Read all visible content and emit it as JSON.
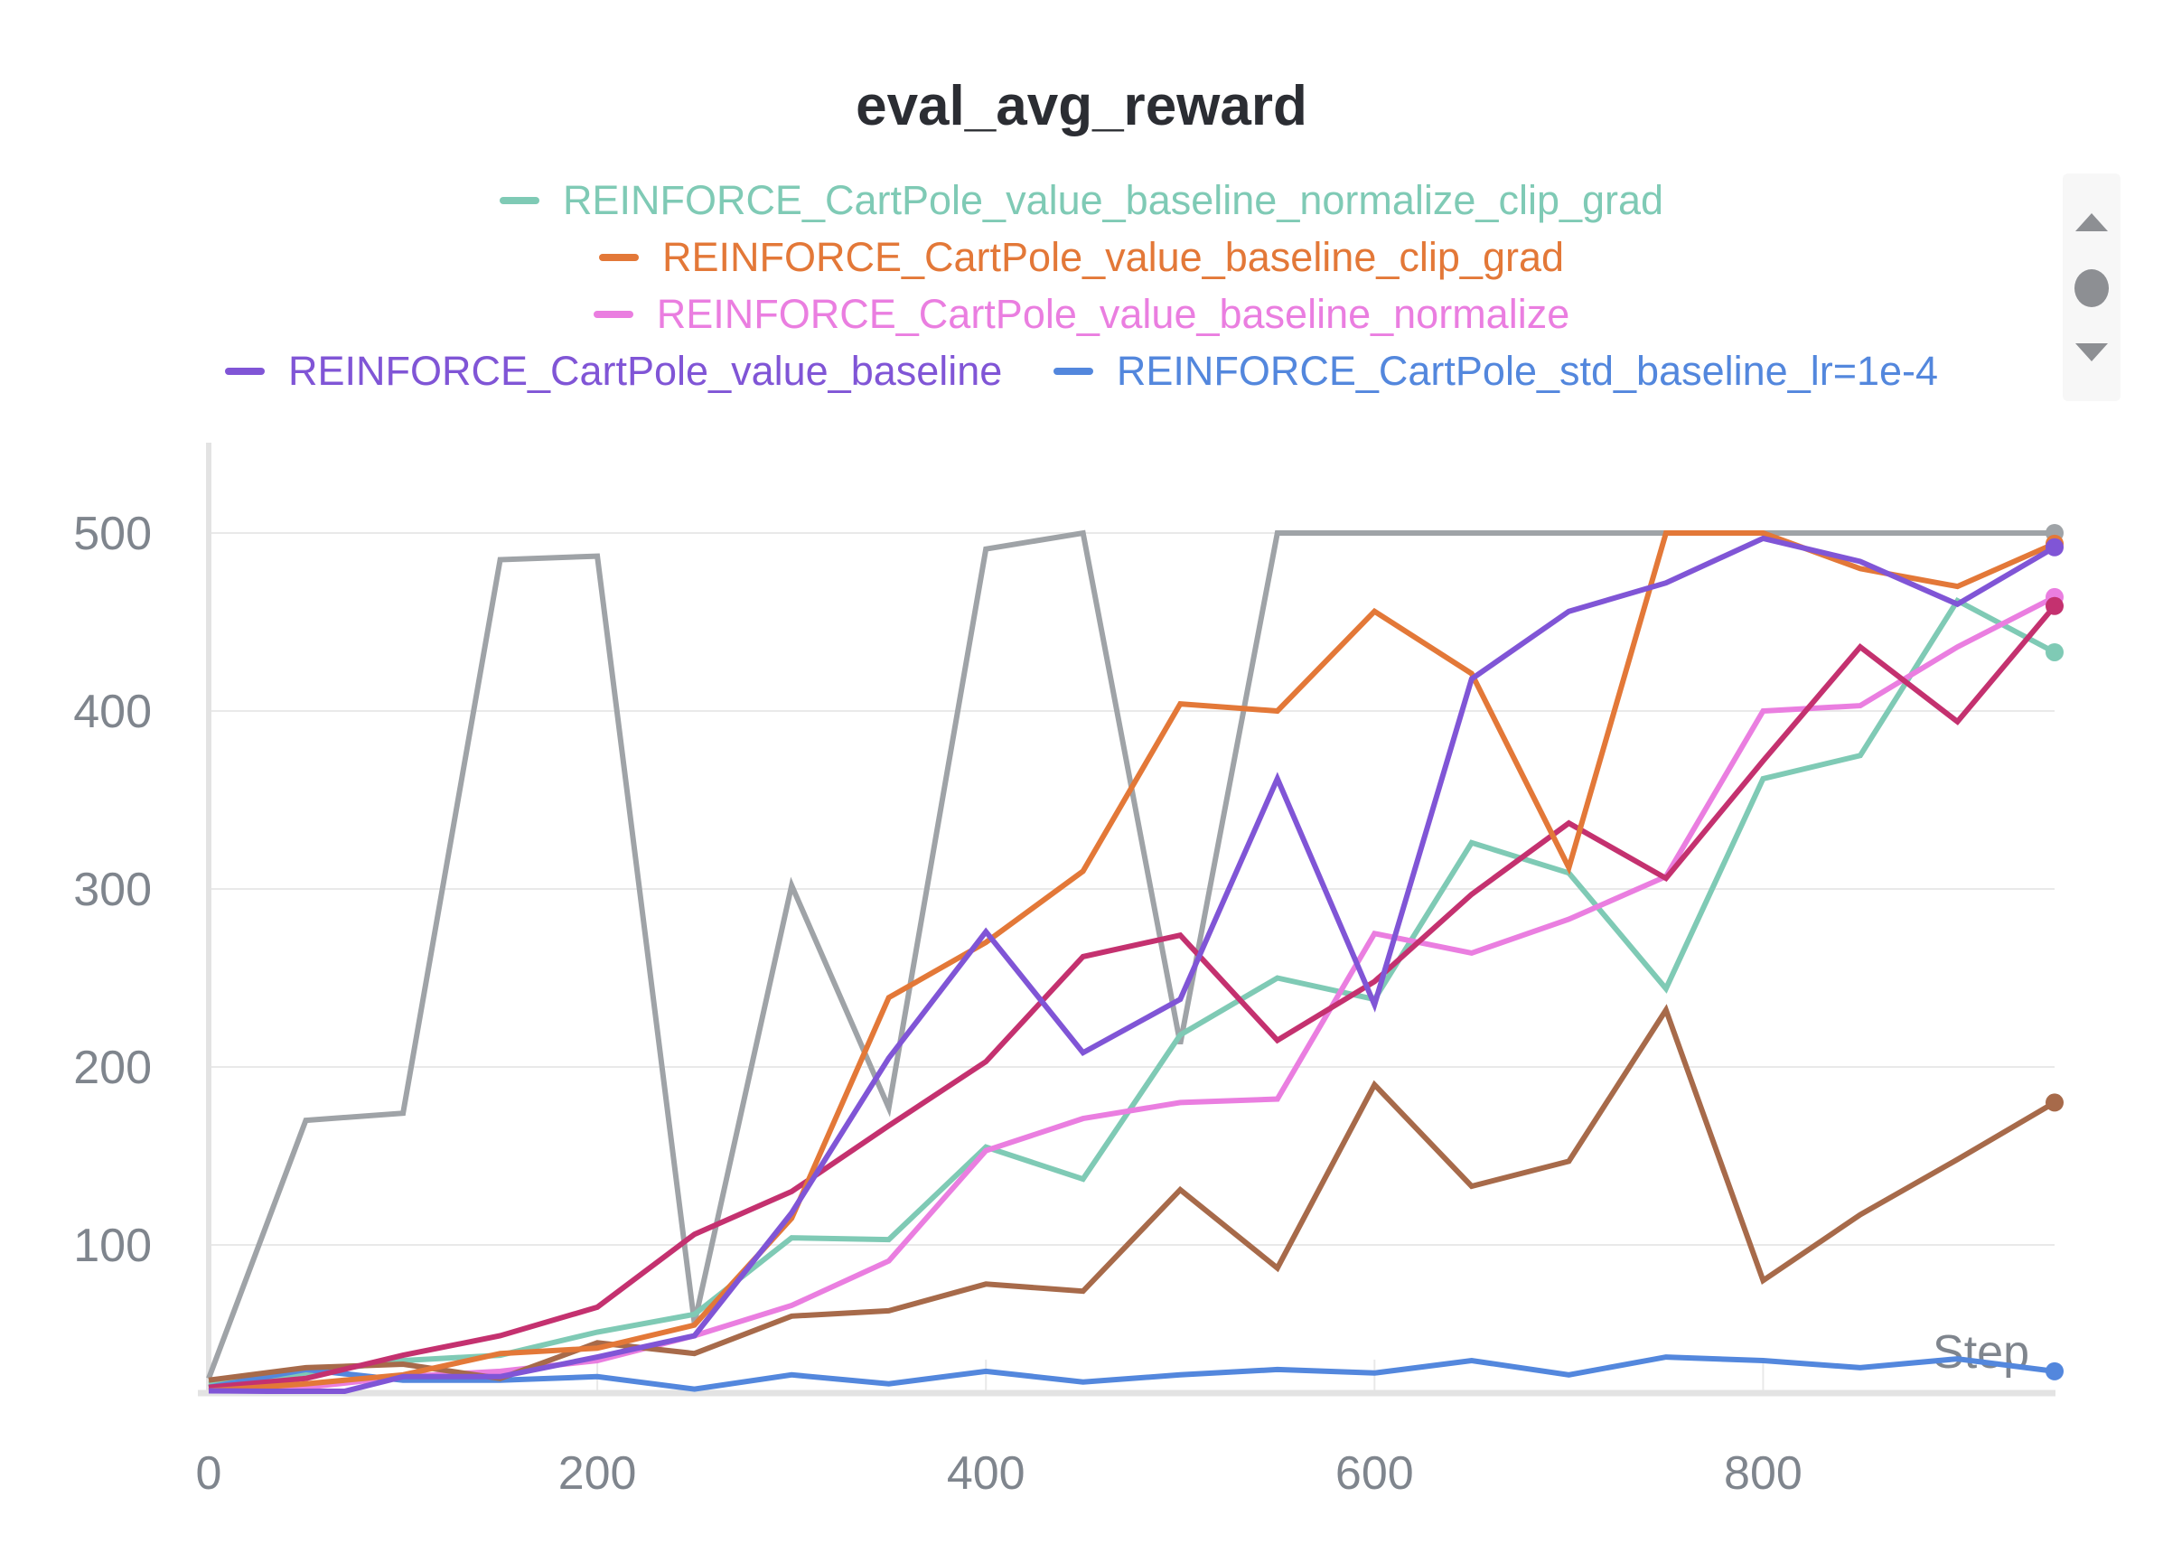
{
  "chart_data": {
    "type": "line",
    "title": "eval_avg_reward",
    "xlabel": "Step",
    "ylabel": "",
    "xlim": [
      0,
      950
    ],
    "ylim": [
      13,
      550
    ],
    "x_ticks": [
      0,
      200,
      400,
      600,
      800
    ],
    "y_ticks": [
      100,
      200,
      300,
      400,
      500
    ],
    "grid": true,
    "legend_position": "top",
    "series": [
      {
        "name": "REINFORCE_CartPole_value_baseline_normalize_clip_grad",
        "color": "#7fcab5",
        "legend": true,
        "x": [
          0,
          50,
          100,
          150,
          200,
          250,
          300,
          350,
          400,
          450,
          500,
          550,
          600,
          650,
          700,
          750,
          800,
          850,
          900,
          950
        ],
        "values": [
          22,
          28,
          35,
          38,
          51,
          61,
          104,
          103,
          155,
          137,
          218,
          250,
          238,
          326,
          309,
          244,
          362,
          375,
          462,
          433
        ]
      },
      {
        "name": "REINFORCE_CartPole_value_baseline_clip_grad",
        "color": "#e37838",
        "legend": true,
        "x": [
          0,
          50,
          100,
          150,
          200,
          250,
          300,
          350,
          400,
          450,
          500,
          550,
          600,
          650,
          700,
          750,
          800,
          850,
          900,
          950
        ],
        "values": [
          18,
          22,
          27,
          39,
          42,
          55,
          115,
          239,
          270,
          310,
          404,
          400,
          456,
          421,
          312,
          500,
          500,
          480,
          470,
          494
        ]
      },
      {
        "name": "REINFORCE_CartPole_value_baseline_normalize",
        "color": "#ea7ee0",
        "legend": true,
        "x": [
          0,
          50,
          100,
          150,
          200,
          250,
          300,
          350,
          400,
          450,
          500,
          550,
          600,
          650,
          700,
          750,
          800,
          850,
          900,
          950
        ],
        "values": [
          18,
          20,
          26,
          29,
          35,
          49,
          66,
          91,
          153,
          171,
          180,
          182,
          275,
          264,
          283,
          307,
          400,
          403,
          436,
          464
        ]
      },
      {
        "name": "REINFORCE_CartPole_value_baseline",
        "color": "#8055d6",
        "legend": true,
        "x": [
          0,
          30,
          70,
          100,
          150,
          200,
          250,
          300,
          350,
          400,
          450,
          500,
          550,
          600,
          650,
          700,
          750,
          800,
          850,
          900,
          950
        ],
        "values": [
          18,
          17,
          17,
          26,
          26,
          37,
          49,
          118,
          205,
          276,
          208,
          238,
          362,
          235,
          418,
          456,
          472,
          497,
          484,
          460,
          492
        ]
      },
      {
        "name": "REINFORCE_CartPole_std_baseline_lr=1e-4",
        "color": "#5387dd",
        "legend": true,
        "x": [
          0,
          50,
          100,
          150,
          200,
          250,
          300,
          350,
          400,
          450,
          500,
          550,
          600,
          650,
          700,
          750,
          800,
          850,
          900,
          950
        ],
        "values": [
          20,
          30,
          24,
          24,
          26,
          19,
          27,
          22,
          29,
          23,
          27,
          30,
          28,
          35,
          27,
          37,
          35,
          31,
          36,
          29
        ]
      },
      {
        "name": "",
        "color": "#9fa3a7",
        "legend": false,
        "x": [
          0,
          50,
          100,
          150,
          200,
          250,
          300,
          350,
          400,
          450,
          500,
          550,
          600,
          650,
          700,
          750,
          800,
          850,
          900,
          950
        ],
        "values": [
          25,
          170,
          174,
          485,
          487,
          56,
          302,
          177,
          491,
          500,
          213,
          500,
          500,
          500,
          500,
          500,
          500,
          500,
          500,
          500
        ]
      },
      {
        "name": "",
        "color": "#c4316f",
        "legend": false,
        "x": [
          0,
          50,
          100,
          150,
          200,
          250,
          300,
          350,
          400,
          450,
          500,
          550,
          600,
          650,
          700,
          750,
          800,
          850,
          900,
          950
        ],
        "values": [
          20,
          25,
          38,
          49,
          65,
          106,
          130,
          167,
          203,
          262,
          274,
          215,
          248,
          297,
          337,
          306,
          372,
          436,
          394,
          459
        ]
      },
      {
        "name": "",
        "color": "#a76a4a",
        "legend": false,
        "x": [
          0,
          50,
          100,
          150,
          200,
          250,
          300,
          350,
          400,
          450,
          500,
          550,
          600,
          650,
          700,
          750,
          800,
          850,
          900,
          950
        ],
        "values": [
          24,
          31,
          33,
          25,
          45,
          39,
          60,
          63,
          78,
          74,
          131,
          87,
          190,
          133,
          147,
          232,
          80,
          117,
          148,
          180
        ]
      }
    ]
  },
  "legend_scroller": {
    "up_icon": "triangle-up-icon",
    "thumb_icon": "scroll-thumb-icon",
    "down_icon": "triangle-down-icon"
  }
}
